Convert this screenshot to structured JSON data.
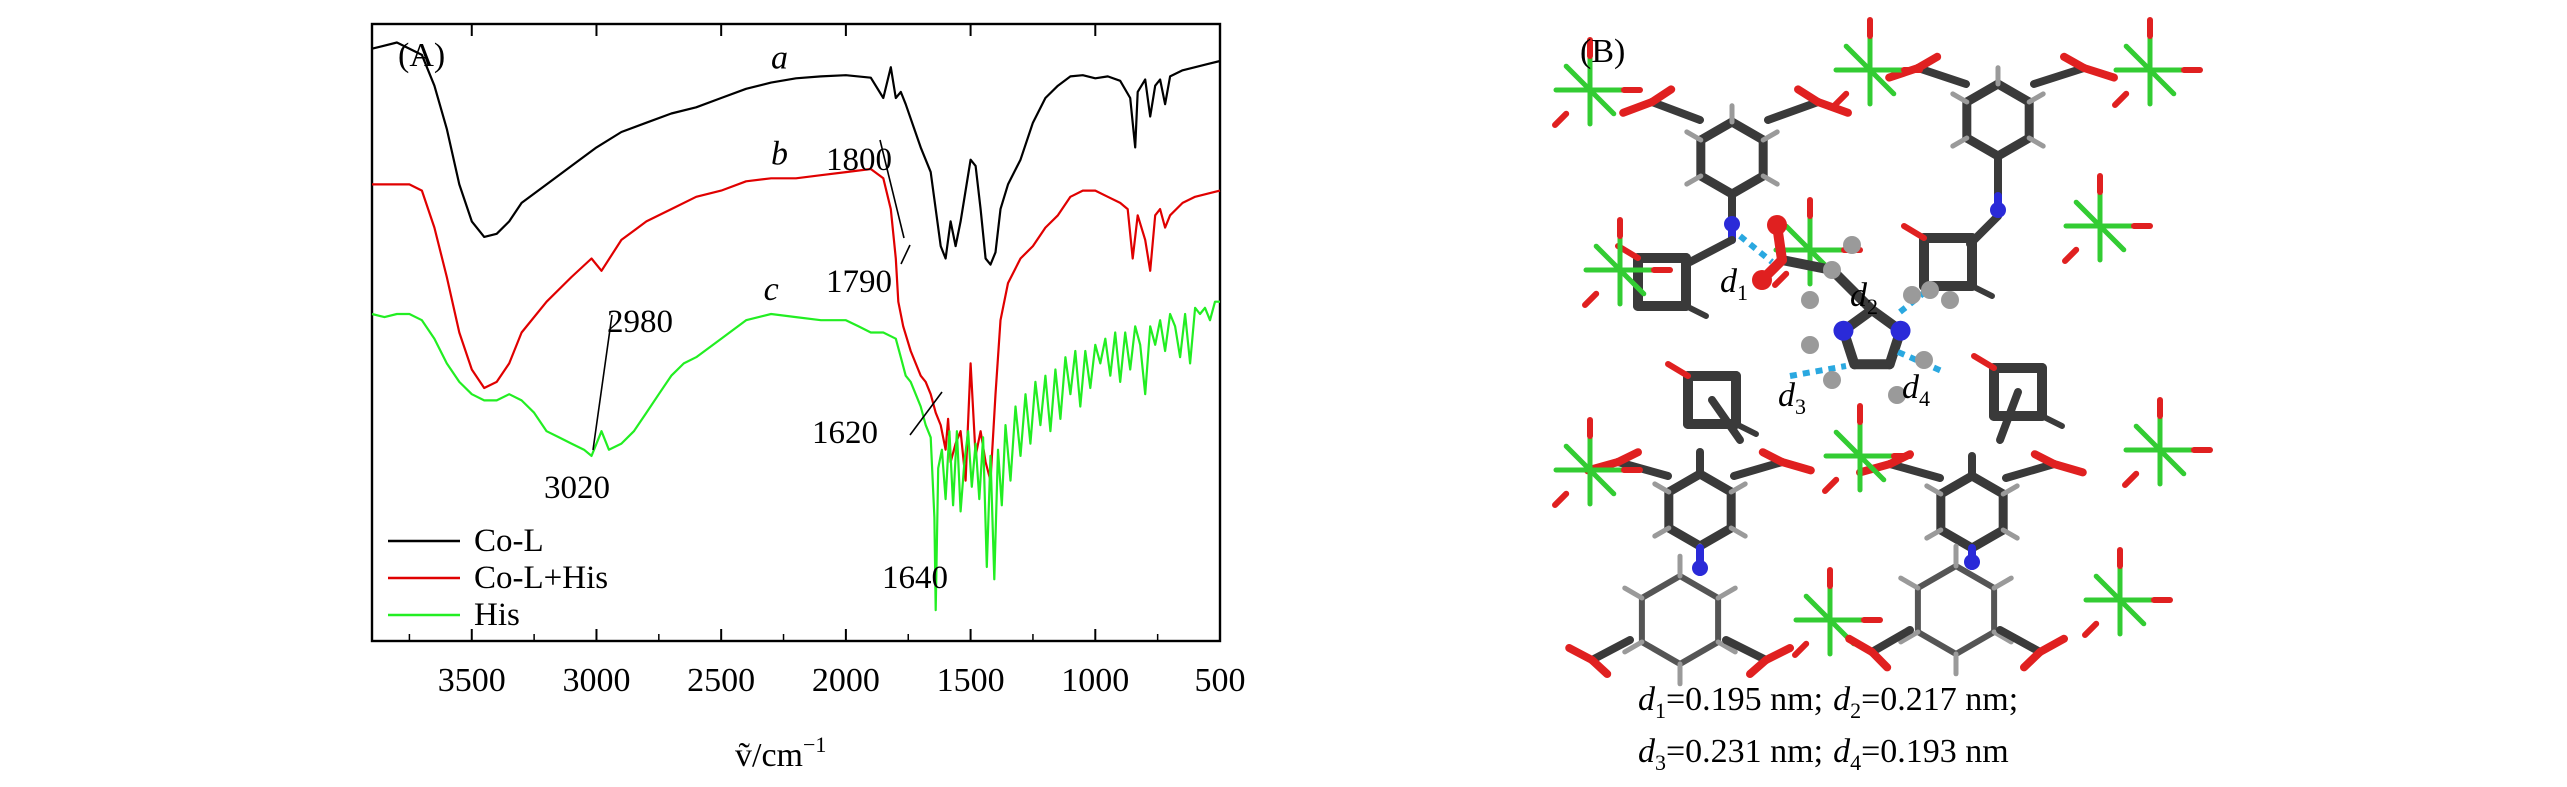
{
  "panel_a": {
    "label": "(A)",
    "xlabel_main": "ṽ/cm",
    "xlabel_exp": "−1",
    "annotations": [
      {
        "text": "1800"
      },
      {
        "text": "1790"
      },
      {
        "text": "2980"
      },
      {
        "text": "3020"
      },
      {
        "text": "1620"
      },
      {
        "text": "1640"
      }
    ],
    "curve_letters": [
      "a",
      "b",
      "c"
    ]
  },
  "panel_b": {
    "label": "(B)",
    "atom_labels": [
      {
        "sym": "d",
        "sub": "1"
      },
      {
        "sym": "d",
        "sub": "2"
      },
      {
        "sym": "d",
        "sub": "3"
      },
      {
        "sym": "d",
        "sub": "4"
      }
    ],
    "distances": [
      {
        "sym": "d",
        "sub": "1",
        "value": "=0.195 nm;"
      },
      {
        "sym": "d",
        "sub": "2",
        "value": "=0.217 nm;"
      },
      {
        "sym": "d",
        "sub": "3",
        "value": "=0.231 nm;"
      },
      {
        "sym": "d",
        "sub": "4",
        "value": "=0.193 nm"
      }
    ]
  },
  "colors": {
    "co_l": "#000000",
    "co_l_his": "#e00000",
    "his": "#22ee22",
    "carbon": "#3a3a3a",
    "oxygen": "#e02020",
    "nitrogen": "#2a2ad8",
    "cobalt": "#33cc33",
    "hydrogen": "#9a9a9a",
    "hbond": "#2aa8e0"
  },
  "chart_data": {
    "type": "line",
    "title": "",
    "xlabel": "ṽ/cm⁻¹",
    "ylabel": "",
    "x_reversed": true,
    "xlim": [
      3900,
      500
    ],
    "xticks": [
      3500,
      3000,
      2500,
      2000,
      1500,
      1000,
      500
    ],
    "y_ticks_shown": false,
    "legend_position": "bottom-left",
    "series": [
      {
        "name": "Co-L",
        "letter": "a",
        "color": "#000000",
        "points": [
          [
            3900,
            0.04
          ],
          [
            3800,
            0.03
          ],
          [
            3700,
            0.05
          ],
          [
            3650,
            0.1
          ],
          [
            3600,
            0.17
          ],
          [
            3550,
            0.26
          ],
          [
            3500,
            0.32
          ],
          [
            3450,
            0.345
          ],
          [
            3400,
            0.34
          ],
          [
            3350,
            0.32
          ],
          [
            3300,
            0.29
          ],
          [
            3200,
            0.26
          ],
          [
            3100,
            0.23
          ],
          [
            3000,
            0.2
          ],
          [
            2900,
            0.175
          ],
          [
            2800,
            0.16
          ],
          [
            2700,
            0.145
          ],
          [
            2600,
            0.135
          ],
          [
            2500,
            0.12
          ],
          [
            2400,
            0.105
          ],
          [
            2300,
            0.095
          ],
          [
            2200,
            0.088
          ],
          [
            2100,
            0.085
          ],
          [
            2000,
            0.083
          ],
          [
            1900,
            0.087
          ],
          [
            1850,
            0.12
          ],
          [
            1820,
            0.07
          ],
          [
            1800,
            0.12
          ],
          [
            1780,
            0.11
          ],
          [
            1760,
            0.13
          ],
          [
            1700,
            0.2
          ],
          [
            1660,
            0.24
          ],
          [
            1640,
            0.3
          ],
          [
            1620,
            0.36
          ],
          [
            1600,
            0.38
          ],
          [
            1580,
            0.32
          ],
          [
            1560,
            0.36
          ],
          [
            1540,
            0.32
          ],
          [
            1520,
            0.27
          ],
          [
            1500,
            0.22
          ],
          [
            1480,
            0.23
          ],
          [
            1460,
            0.3
          ],
          [
            1440,
            0.38
          ],
          [
            1420,
            0.39
          ],
          [
            1400,
            0.37
          ],
          [
            1380,
            0.3
          ],
          [
            1350,
            0.26
          ],
          [
            1300,
            0.22
          ],
          [
            1250,
            0.16
          ],
          [
            1200,
            0.12
          ],
          [
            1150,
            0.1
          ],
          [
            1100,
            0.085
          ],
          [
            1050,
            0.083
          ],
          [
            1000,
            0.088
          ],
          [
            950,
            0.085
          ],
          [
            900,
            0.092
          ],
          [
            860,
            0.12
          ],
          [
            840,
            0.2
          ],
          [
            830,
            0.11
          ],
          [
            800,
            0.09
          ],
          [
            780,
            0.15
          ],
          [
            760,
            0.1
          ],
          [
            740,
            0.09
          ],
          [
            720,
            0.13
          ],
          [
            700,
            0.085
          ],
          [
            650,
            0.075
          ],
          [
            600,
            0.07
          ],
          [
            550,
            0.065
          ],
          [
            500,
            0.06
          ]
        ]
      },
      {
        "name": "Co-L+His",
        "letter": "b",
        "color": "#e00000",
        "points": [
          [
            3900,
            0.26
          ],
          [
            3800,
            0.26
          ],
          [
            3750,
            0.26
          ],
          [
            3700,
            0.27
          ],
          [
            3650,
            0.33
          ],
          [
            3600,
            0.41
          ],
          [
            3550,
            0.5
          ],
          [
            3500,
            0.56
          ],
          [
            3450,
            0.59
          ],
          [
            3400,
            0.58
          ],
          [
            3350,
            0.55
          ],
          [
            3300,
            0.5
          ],
          [
            3200,
            0.45
          ],
          [
            3100,
            0.41
          ],
          [
            3020,
            0.38
          ],
          [
            2980,
            0.4
          ],
          [
            2900,
            0.35
          ],
          [
            2800,
            0.32
          ],
          [
            2700,
            0.3
          ],
          [
            2600,
            0.28
          ],
          [
            2500,
            0.27
          ],
          [
            2400,
            0.255
          ],
          [
            2300,
            0.25
          ],
          [
            2200,
            0.25
          ],
          [
            2100,
            0.245
          ],
          [
            2000,
            0.24
          ],
          [
            1900,
            0.235
          ],
          [
            1850,
            0.25
          ],
          [
            1820,
            0.3
          ],
          [
            1800,
            0.38
          ],
          [
            1790,
            0.45
          ],
          [
            1770,
            0.49
          ],
          [
            1740,
            0.53
          ],
          [
            1700,
            0.57
          ],
          [
            1680,
            0.58
          ],
          [
            1660,
            0.6
          ],
          [
            1640,
            0.63
          ],
          [
            1620,
            0.65
          ],
          [
            1600,
            0.69
          ],
          [
            1590,
            0.64
          ],
          [
            1580,
            0.71
          ],
          [
            1560,
            0.68
          ],
          [
            1540,
            0.66
          ],
          [
            1520,
            0.74
          ],
          [
            1500,
            0.55
          ],
          [
            1480,
            0.7
          ],
          [
            1460,
            0.66
          ],
          [
            1440,
            0.71
          ],
          [
            1420,
            0.74
          ],
          [
            1400,
            0.6
          ],
          [
            1380,
            0.48
          ],
          [
            1350,
            0.42
          ],
          [
            1300,
            0.38
          ],
          [
            1250,
            0.36
          ],
          [
            1200,
            0.33
          ],
          [
            1150,
            0.31
          ],
          [
            1100,
            0.28
          ],
          [
            1050,
            0.27
          ],
          [
            1000,
            0.27
          ],
          [
            950,
            0.28
          ],
          [
            900,
            0.29
          ],
          [
            870,
            0.3
          ],
          [
            850,
            0.38
          ],
          [
            830,
            0.31
          ],
          [
            800,
            0.35
          ],
          [
            780,
            0.4
          ],
          [
            760,
            0.31
          ],
          [
            740,
            0.3
          ],
          [
            720,
            0.33
          ],
          [
            700,
            0.31
          ],
          [
            650,
            0.29
          ],
          [
            600,
            0.28
          ],
          [
            550,
            0.275
          ],
          [
            500,
            0.27
          ]
        ]
      },
      {
        "name": "His",
        "letter": "c",
        "color": "#22ee22",
        "points": [
          [
            3900,
            0.47
          ],
          [
            3850,
            0.475
          ],
          [
            3800,
            0.47
          ],
          [
            3750,
            0.47
          ],
          [
            3700,
            0.48
          ],
          [
            3650,
            0.51
          ],
          [
            3600,
            0.55
          ],
          [
            3550,
            0.58
          ],
          [
            3500,
            0.6
          ],
          [
            3450,
            0.61
          ],
          [
            3400,
            0.61
          ],
          [
            3350,
            0.6
          ],
          [
            3300,
            0.61
          ],
          [
            3250,
            0.63
          ],
          [
            3200,
            0.66
          ],
          [
            3150,
            0.67
          ],
          [
            3100,
            0.68
          ],
          [
            3050,
            0.69
          ],
          [
            3020,
            0.7
          ],
          [
            3000,
            0.68
          ],
          [
            2980,
            0.66
          ],
          [
            2950,
            0.69
          ],
          [
            2900,
            0.68
          ],
          [
            2850,
            0.66
          ],
          [
            2800,
            0.63
          ],
          [
            2750,
            0.6
          ],
          [
            2700,
            0.57
          ],
          [
            2650,
            0.55
          ],
          [
            2600,
            0.54
          ],
          [
            2500,
            0.51
          ],
          [
            2400,
            0.48
          ],
          [
            2300,
            0.47
          ],
          [
            2200,
            0.475
          ],
          [
            2100,
            0.48
          ],
          [
            2000,
            0.48
          ],
          [
            1950,
            0.49
          ],
          [
            1900,
            0.5
          ],
          [
            1850,
            0.5
          ],
          [
            1800,
            0.51
          ],
          [
            1780,
            0.54
          ],
          [
            1760,
            0.57
          ],
          [
            1740,
            0.58
          ],
          [
            1720,
            0.6
          ],
          [
            1700,
            0.62
          ],
          [
            1680,
            0.65
          ],
          [
            1660,
            0.67
          ],
          [
            1645,
            0.8
          ],
          [
            1640,
            0.95
          ],
          [
            1630,
            0.72
          ],
          [
            1615,
            0.69
          ],
          [
            1600,
            0.77
          ],
          [
            1585,
            0.66
          ],
          [
            1570,
            0.78
          ],
          [
            1555,
            0.66
          ],
          [
            1540,
            0.79
          ],
          [
            1525,
            0.71
          ],
          [
            1510,
            0.66
          ],
          [
            1495,
            0.75
          ],
          [
            1480,
            0.68
          ],
          [
            1465,
            0.77
          ],
          [
            1450,
            0.67
          ],
          [
            1435,
            0.88
          ],
          [
            1420,
            0.7
          ],
          [
            1405,
            0.9
          ],
          [
            1390,
            0.69
          ],
          [
            1375,
            0.78
          ],
          [
            1360,
            0.65
          ],
          [
            1340,
            0.74
          ],
          [
            1320,
            0.62
          ],
          [
            1300,
            0.7
          ],
          [
            1280,
            0.6
          ],
          [
            1260,
            0.68
          ],
          [
            1240,
            0.58
          ],
          [
            1220,
            0.65
          ],
          [
            1200,
            0.57
          ],
          [
            1180,
            0.66
          ],
          [
            1160,
            0.56
          ],
          [
            1140,
            0.64
          ],
          [
            1120,
            0.54
          ],
          [
            1100,
            0.6
          ],
          [
            1080,
            0.53
          ],
          [
            1060,
            0.62
          ],
          [
            1040,
            0.53
          ],
          [
            1020,
            0.59
          ],
          [
            1000,
            0.52
          ],
          [
            980,
            0.55
          ],
          [
            960,
            0.51
          ],
          [
            940,
            0.57
          ],
          [
            920,
            0.5
          ],
          [
            900,
            0.58
          ],
          [
            880,
            0.5
          ],
          [
            860,
            0.56
          ],
          [
            840,
            0.49
          ],
          [
            820,
            0.52
          ],
          [
            800,
            0.6
          ],
          [
            780,
            0.49
          ],
          [
            760,
            0.52
          ],
          [
            740,
            0.48
          ],
          [
            720,
            0.53
          ],
          [
            700,
            0.47
          ],
          [
            680,
            0.49
          ],
          [
            660,
            0.54
          ],
          [
            640,
            0.47
          ],
          [
            620,
            0.55
          ],
          [
            600,
            0.46
          ],
          [
            580,
            0.47
          ],
          [
            560,
            0.46
          ],
          [
            540,
            0.48
          ],
          [
            520,
            0.45
          ],
          [
            500,
            0.45
          ]
        ]
      }
    ]
  }
}
